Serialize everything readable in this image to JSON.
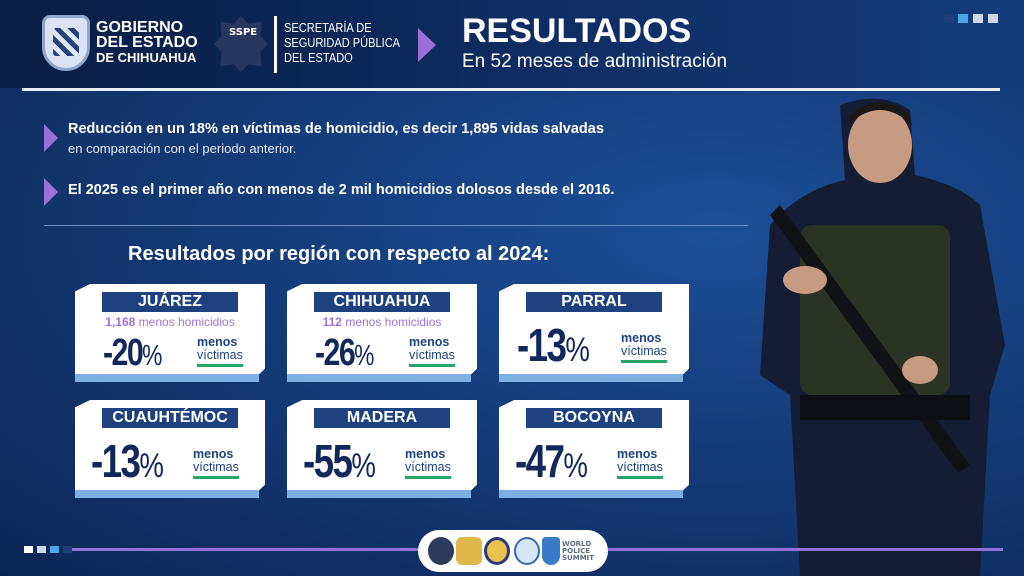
{
  "header": {
    "gov_logo_text": [
      "GOBIERNO",
      "DEL ESTADO",
      "DE CHIHUAHUA"
    ],
    "sspe_badge": "SSPE",
    "agency_text": [
      "SECRETARÍA DE",
      "SEGURIDAD PÚBLICA",
      "DEL ESTADO"
    ],
    "title": "RESULTADOS",
    "subtitle": "En 52 meses de administración"
  },
  "bullets": [
    {
      "text": "Reducción en un 18% en víctimas de homicidio, es decir 1,895 vidas salvadas",
      "subtext": "en comparación con el periodo anterior."
    },
    {
      "text": "El 2025 es el primer año con menos de 2 mil homicidios dolosos desde el 2016."
    }
  ],
  "section_title": "Resultados por región con respecto al 2024:",
  "regions": [
    {
      "name": "JUÁREZ",
      "homicides_count": "1,168",
      "homicides_label": "menos homicidios",
      "percent": "-20",
      "unit": "%",
      "label1": "menos",
      "label2": "víctimas"
    },
    {
      "name": "CHIHUAHUA",
      "homicides_count": "112",
      "homicides_label": "menos homicidios",
      "percent": "-26",
      "unit": "%",
      "label1": "menos",
      "label2": "víctimas"
    },
    {
      "name": "PARRAL",
      "percent": "-13",
      "unit": "%",
      "label1": "menos",
      "label2": "víctimas"
    },
    {
      "name": "CUAUHTÉMOC",
      "percent": "-13",
      "unit": "%",
      "label1": "menos",
      "label2": "víctimas"
    },
    {
      "name": "MADERA",
      "percent": "-55",
      "unit": "%",
      "label1": "menos",
      "label2": "víctimas"
    },
    {
      "name": "BOCOYNA",
      "percent": "-47",
      "unit": "%",
      "label1": "menos",
      "label2": "víctimas"
    }
  ],
  "footer": {
    "summit_text": [
      "WORLD",
      "POLICE",
      "SUMMIT"
    ]
  },
  "colors": {
    "navy": "#12285a",
    "accent_purple": "#9b6fd6",
    "green": "#25a56a",
    "label_blue": "#1d427f"
  }
}
